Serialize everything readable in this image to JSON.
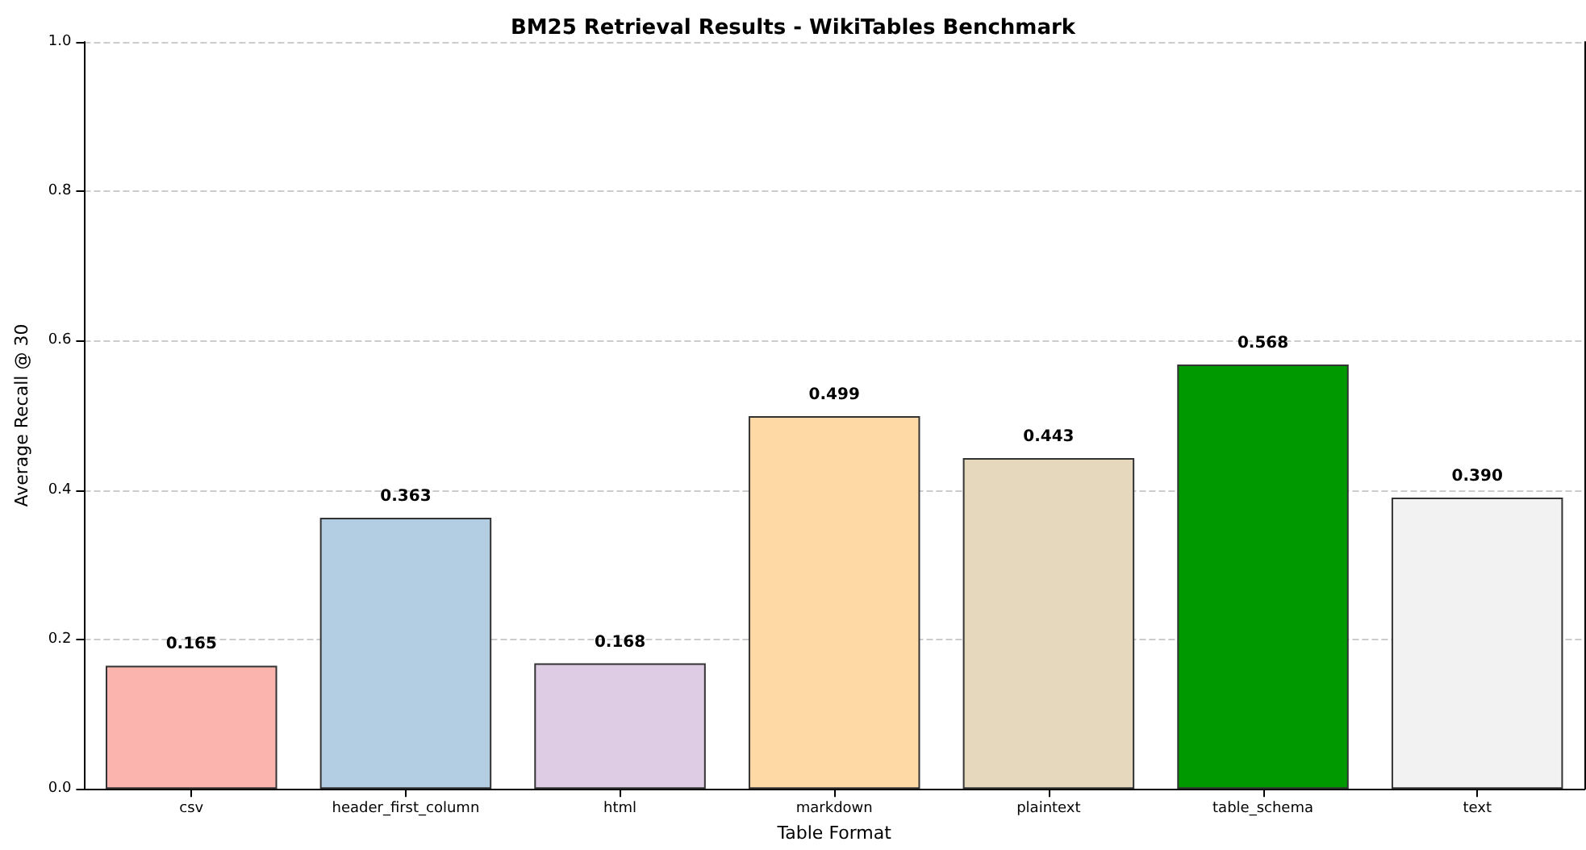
{
  "chart_data": {
    "type": "bar",
    "title": "BM25 Retrieval Results - WikiTables Benchmark",
    "xlabel": "Table Format",
    "ylabel": "Average Recall @ 30",
    "categories": [
      "csv",
      "header_first_column",
      "html",
      "markdown",
      "plaintext",
      "table_schema",
      "text"
    ],
    "values": [
      0.165,
      0.363,
      0.168,
      0.499,
      0.443,
      0.568,
      0.39
    ],
    "value_labels": [
      "0.165",
      "0.363",
      "0.168",
      "0.499",
      "0.443",
      "0.568",
      "0.390"
    ],
    "colors": [
      "#fbb4ae",
      "#b3cde3",
      "#decbe4",
      "#fed9a6",
      "#e5d8bd",
      "#009900",
      "#f2f2f2"
    ],
    "ylim": [
      0,
      1
    ],
    "yticks": [
      {
        "value": 0,
        "label": "0.0"
      },
      {
        "value": 0.2,
        "label": "0.2"
      },
      {
        "value": 0.4,
        "label": "0.4"
      },
      {
        "value": 0.6,
        "label": "0.6"
      },
      {
        "value": 0.8,
        "label": "0.8"
      },
      {
        "value": 1,
        "label": "1.0"
      }
    ],
    "grid": "y"
  }
}
